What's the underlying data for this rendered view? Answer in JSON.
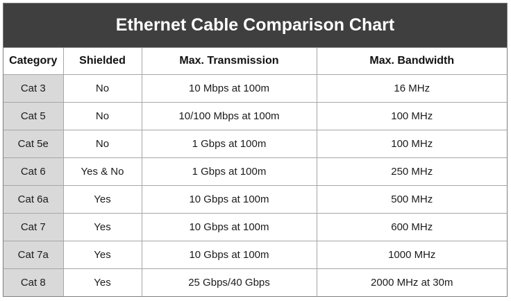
{
  "chart_data": {
    "type": "table",
    "title": "Ethernet Cable Comparison Chart",
    "columns": [
      "Category",
      "Shielded",
      "Max. Transmission",
      "Max. Bandwidth"
    ],
    "rows": [
      [
        "Cat 3",
        "No",
        "10 Mbps at 100m",
        "16 MHz"
      ],
      [
        "Cat 5",
        "No",
        "10/100 Mbps at 100m",
        "100 MHz"
      ],
      [
        "Cat 5e",
        "No",
        "1 Gbps at 100m",
        "100 MHz"
      ],
      [
        "Cat 6",
        "Yes & No",
        "1 Gbps at 100m",
        "250 MHz"
      ],
      [
        "Cat 6a",
        "Yes",
        "10 Gbps at 100m",
        "500 MHz"
      ],
      [
        "Cat 7",
        "Yes",
        "10 Gbps at 100m",
        "600 MHz"
      ],
      [
        "Cat 7a",
        "Yes",
        "10 Gbps at 100m",
        "1000 MHz"
      ],
      [
        "Cat 8",
        "Yes",
        "25 Gbps/40 Gbps",
        "2000 MHz at 30m"
      ]
    ]
  },
  "colors": {
    "title_background": "#3f3f3f",
    "title_text": "#ffffff",
    "category_cell_background": "#d9d9d9",
    "grid_line": "#a6a6a6"
  }
}
